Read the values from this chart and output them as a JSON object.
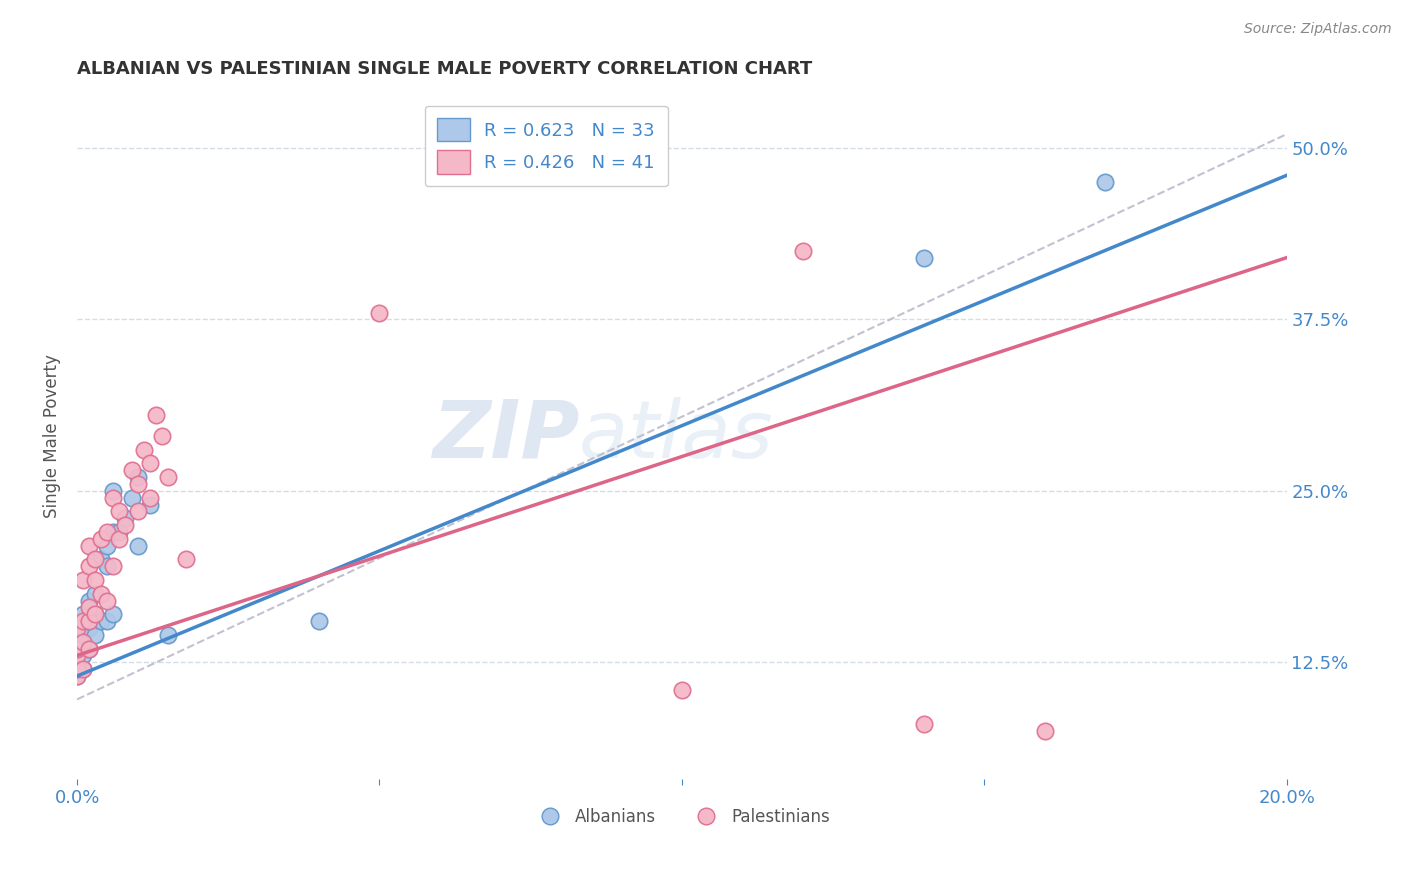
{
  "title": "ALBANIAN VS PALESTINIAN SINGLE MALE POVERTY CORRELATION CHART",
  "source": "Source: ZipAtlas.com",
  "ylabel": "Single Male Poverty",
  "xlim": [
    0.0,
    0.2
  ],
  "ylim": [
    0.04,
    0.54
  ],
  "xticks": [
    0.0,
    0.05,
    0.1,
    0.15,
    0.2
  ],
  "xtick_labels": [
    "0.0%",
    "",
    "",
    "",
    "20.0%"
  ],
  "ytick_labels_right": [
    "12.5%",
    "25.0%",
    "37.5%",
    "50.0%"
  ],
  "yticks_right": [
    0.125,
    0.25,
    0.375,
    0.5
  ],
  "albanian_color": "#adc8e8",
  "albanian_edge": "#6699cc",
  "palestinian_color": "#f5b8c8",
  "palestinian_edge": "#e07090",
  "line_albanian_color": "#4488cc",
  "line_palestinian_color": "#dd6688",
  "diagonal_color": "#bbbbcc",
  "R_albanian": 0.623,
  "N_albanian": 33,
  "R_palestinian": 0.426,
  "N_palestinian": 41,
  "legend_entries": [
    "Albanians",
    "Palestinians"
  ],
  "albanian_x": [
    0.0,
    0.0,
    0.0,
    0.001,
    0.001,
    0.001,
    0.001,
    0.001,
    0.002,
    0.002,
    0.002,
    0.002,
    0.003,
    0.003,
    0.003,
    0.004,
    0.004,
    0.005,
    0.005,
    0.005,
    0.006,
    0.006,
    0.006,
    0.007,
    0.008,
    0.009,
    0.01,
    0.01,
    0.012,
    0.015,
    0.04,
    0.14,
    0.17
  ],
  "albanian_y": [
    0.115,
    0.12,
    0.13,
    0.12,
    0.13,
    0.14,
    0.15,
    0.16,
    0.135,
    0.15,
    0.155,
    0.17,
    0.145,
    0.16,
    0.175,
    0.155,
    0.2,
    0.155,
    0.195,
    0.21,
    0.16,
    0.22,
    0.25,
    0.22,
    0.23,
    0.245,
    0.21,
    0.26,
    0.24,
    0.145,
    0.155,
    0.42,
    0.475
  ],
  "palestinian_x": [
    0.0,
    0.0,
    0.0,
    0.0,
    0.0,
    0.001,
    0.001,
    0.001,
    0.001,
    0.002,
    0.002,
    0.002,
    0.002,
    0.002,
    0.003,
    0.003,
    0.003,
    0.004,
    0.004,
    0.005,
    0.005,
    0.006,
    0.006,
    0.007,
    0.007,
    0.008,
    0.009,
    0.01,
    0.01,
    0.011,
    0.012,
    0.012,
    0.013,
    0.014,
    0.015,
    0.018,
    0.05,
    0.1,
    0.12,
    0.14,
    0.16
  ],
  "palestinian_y": [
    0.115,
    0.12,
    0.13,
    0.135,
    0.15,
    0.12,
    0.14,
    0.155,
    0.185,
    0.135,
    0.155,
    0.165,
    0.195,
    0.21,
    0.16,
    0.185,
    0.2,
    0.175,
    0.215,
    0.17,
    0.22,
    0.195,
    0.245,
    0.215,
    0.235,
    0.225,
    0.265,
    0.235,
    0.255,
    0.28,
    0.245,
    0.27,
    0.305,
    0.29,
    0.26,
    0.2,
    0.38,
    0.105,
    0.425,
    0.08,
    0.075
  ],
  "watermark_zip": "ZIP",
  "watermark_atlas": "atlas",
  "background_color": "#ffffff",
  "grid_color": "#d4dce8",
  "title_color": "#333333",
  "axis_label_color": "#555555",
  "tick_color": "#4488cc",
  "legend_text_color": "#4488cc",
  "source_color": "#888888"
}
